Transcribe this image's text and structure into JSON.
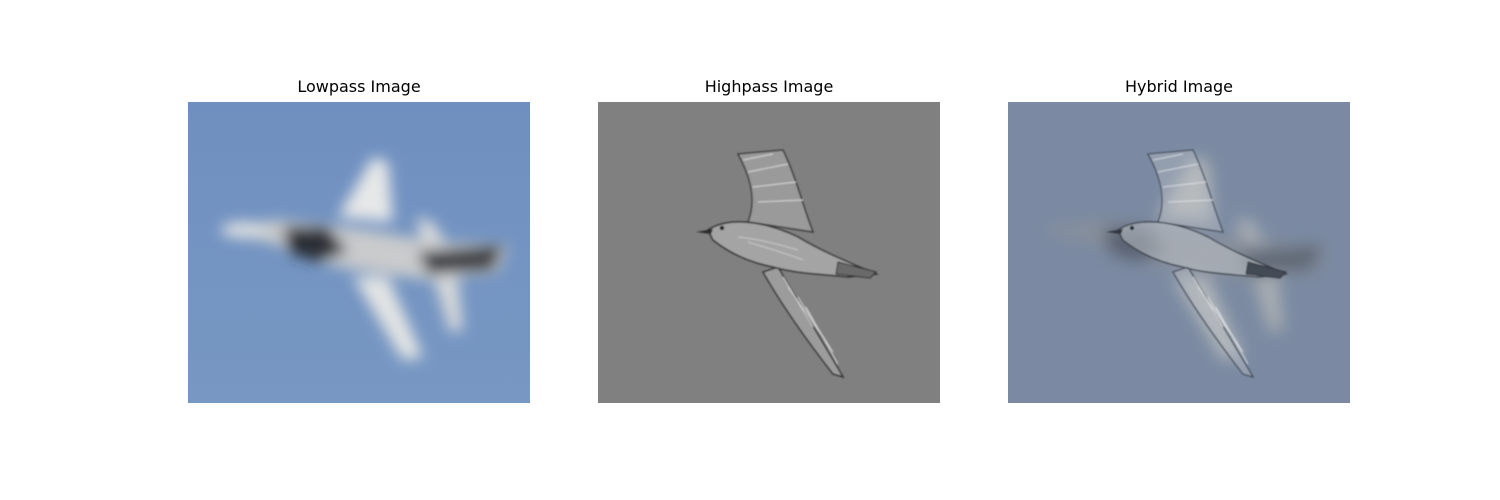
{
  "figure": {
    "panels": [
      {
        "title": "Lowpass Image",
        "background": "#7393c0",
        "subject": "fighter-jet",
        "style": "blurred"
      },
      {
        "title": "Highpass Image",
        "background": "#808080",
        "subject": "seagull",
        "style": "edge-detail"
      },
      {
        "title": "Hybrid Image",
        "background": "#7b8aa2",
        "subject": "fighter-jet-and-seagull",
        "style": "hybrid"
      }
    ]
  }
}
